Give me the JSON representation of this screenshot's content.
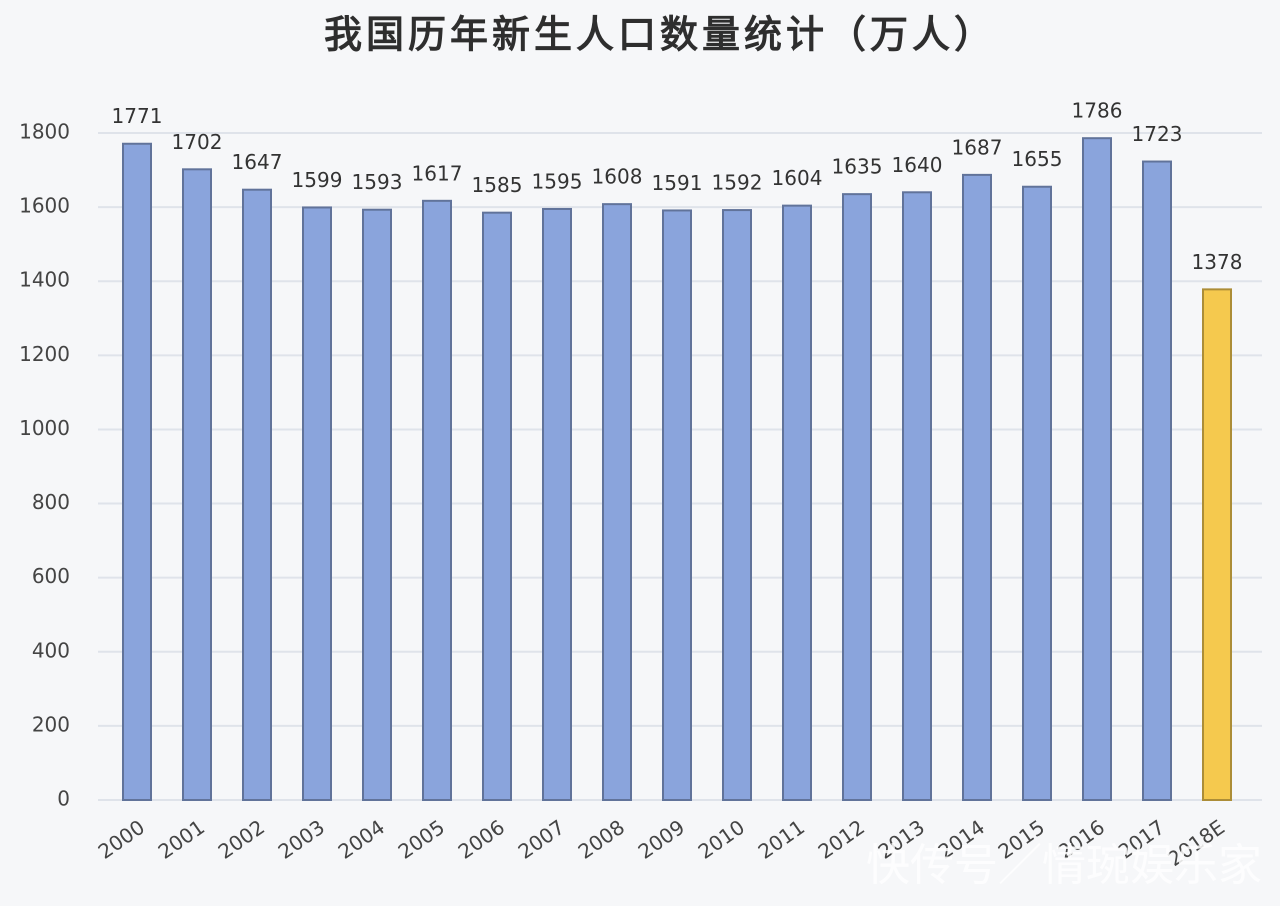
{
  "chart_data": {
    "type": "bar",
    "title": "我国历年新生人口数量统计（万人）",
    "categories": [
      "2000",
      "2001",
      "2002",
      "2003",
      "2004",
      "2005",
      "2006",
      "2007",
      "2008",
      "2009",
      "2010",
      "2011",
      "2012",
      "2013",
      "2014",
      "2015",
      "2016",
      "2017",
      "2018E"
    ],
    "values": [
      1771,
      1702,
      1647,
      1599,
      1593,
      1617,
      1585,
      1595,
      1608,
      1591,
      1592,
      1604,
      1635,
      1640,
      1687,
      1655,
      1786,
      1723,
      1378
    ],
    "colors": [
      "#8aa4dc",
      "#8aa4dc",
      "#8aa4dc",
      "#8aa4dc",
      "#8aa4dc",
      "#8aa4dc",
      "#8aa4dc",
      "#8aa4dc",
      "#8aa4dc",
      "#8aa4dc",
      "#8aa4dc",
      "#8aa4dc",
      "#8aa4dc",
      "#8aa4dc",
      "#8aa4dc",
      "#8aa4dc",
      "#8aa4dc",
      "#8aa4dc",
      "#f5c94e"
    ],
    "ylim": [
      0,
      1800
    ],
    "yticks": [
      0,
      200,
      400,
      600,
      800,
      1000,
      1200,
      1400,
      1600,
      1800
    ],
    "grid": true,
    "watermark": "快传号／情琬娱乐家"
  }
}
